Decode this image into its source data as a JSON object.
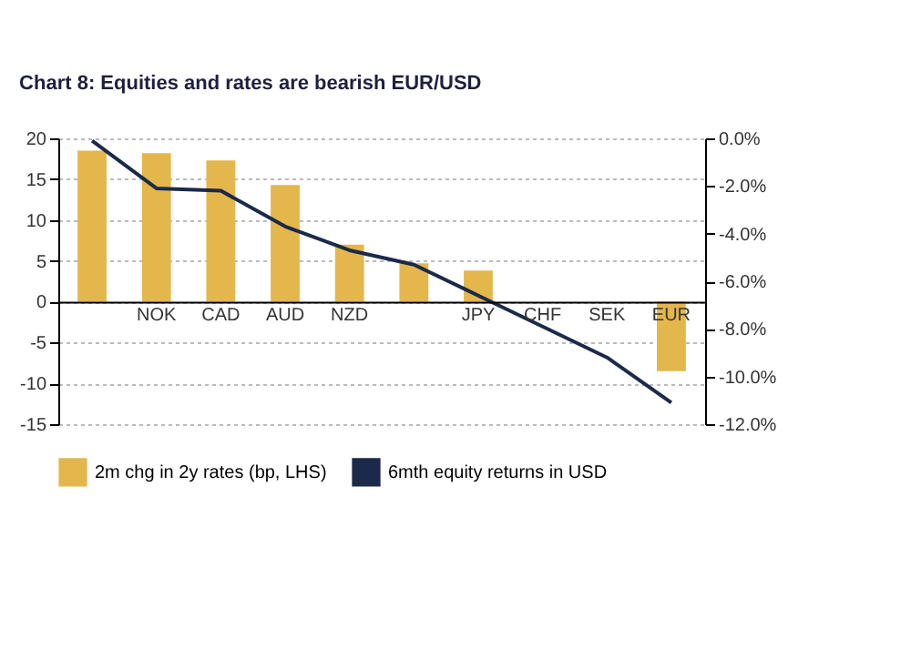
{
  "chart_data": {
    "type": "bar",
    "title": "Chart 8: Equities and rates are bearish EUR/USD",
    "categories": [
      null,
      "NOK",
      "CAD",
      "AUD",
      "NZD",
      null,
      "JPY",
      "CHF",
      "SEK",
      "EUR"
    ],
    "series": [
      {
        "name": "2m chg in 2y rates (bp, LHS)",
        "color": "#e3b74c",
        "values": [
          18.5,
          18.2,
          17.3,
          14.3,
          7.0,
          4.7,
          3.8,
          null,
          null,
          -8.5
        ]
      },
      {
        "name": "6mth equity returns in USD",
        "type": "line",
        "axis": "y2",
        "color": "#1b2a4a",
        "values": [
          -0.1,
          -2.1,
          -2.2,
          -3.7,
          -4.7,
          -5.3,
          -6.6,
          -7.9,
          -9.2,
          -11.1
        ]
      }
    ],
    "ylim": [
      -15,
      20
    ],
    "yticks": [
      -15,
      -10,
      -5,
      0,
      5,
      10,
      15,
      20
    ],
    "y2lim": [
      -12,
      0
    ],
    "y2ticks": [
      {
        "value": 0,
        "label": "0.0%"
      },
      {
        "value": -2,
        "label": "-2.0%"
      },
      {
        "value": -4,
        "label": "-4.0%"
      },
      {
        "value": -6,
        "label": "-6.0%"
      },
      {
        "value": -8,
        "label": "-8.0%"
      },
      {
        "value": -10,
        "label": "-10.0%"
      },
      {
        "value": -12,
        "label": "-12.0%"
      }
    ],
    "grid": "y",
    "legend": "bottom",
    "marker": "none",
    "line_style": "solid"
  }
}
